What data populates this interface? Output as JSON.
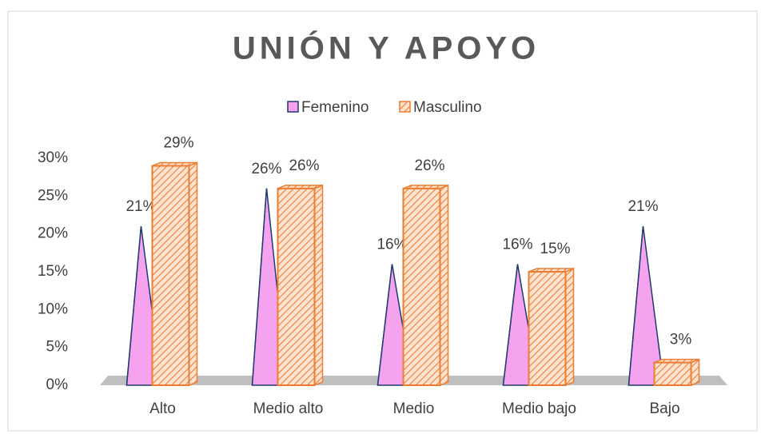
{
  "chart_data": {
    "type": "bar3d",
    "title": "UNIÓN Y APOYO",
    "categories": [
      "Alto",
      "Medio alto",
      "Medio",
      "Medio bajo",
      "Bajo"
    ],
    "series": [
      {
        "name": "Femenino",
        "color": "#f5a3ee",
        "values": [
          21,
          26,
          16,
          16,
          21
        ],
        "value_labels": [
          "21%",
          "26%",
          "16%",
          "16%",
          "21%"
        ]
      },
      {
        "name": "Masculino",
        "color": "#ed7d31",
        "values": [
          29,
          26,
          26,
          15,
          3
        ],
        "value_labels": [
          "29%",
          "26%",
          "26%",
          "15%",
          "3%"
        ]
      }
    ],
    "ylim": [
      0,
      30
    ],
    "yticks": [
      {
        "value": 0,
        "label": "0%"
      },
      {
        "value": 5,
        "label": "5%"
      },
      {
        "value": 10,
        "label": "10%"
      },
      {
        "value": 15,
        "label": "15%"
      },
      {
        "value": 20,
        "label": "20%"
      },
      {
        "value": 25,
        "label": "25%"
      },
      {
        "value": 30,
        "label": "30%"
      }
    ],
    "legend": "top"
  }
}
